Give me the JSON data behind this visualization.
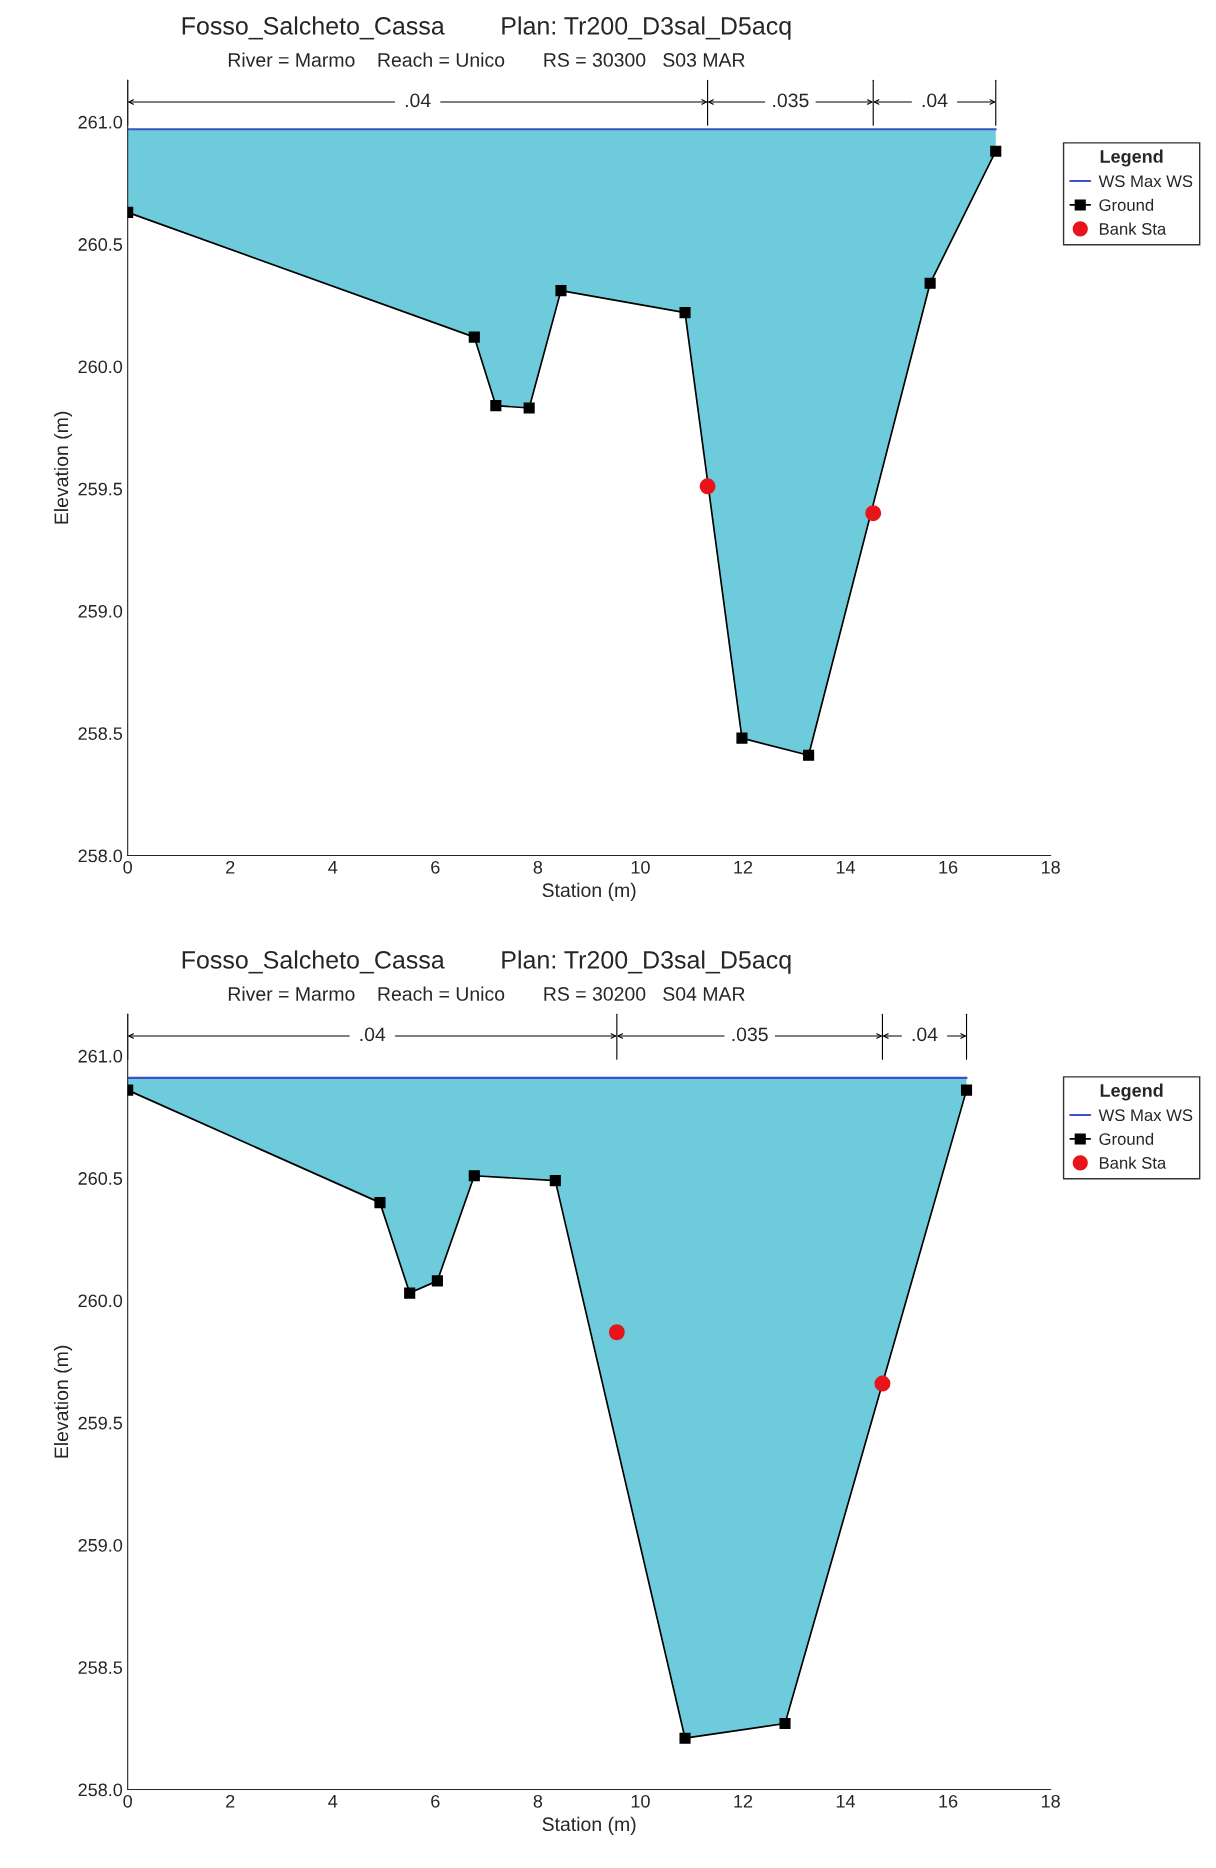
{
  "chart_data": [
    {
      "type": "line",
      "title": "Fosso_Salcheto_Cassa        Plan: Tr200_D3sal_D5acq",
      "subtitle": "River = Marmo    Reach = Unico       RS = 30300   S03 MAR",
      "xlabel": "Station (m)",
      "ylabel": "Elevation (m)",
      "legend_title": "Legend",
      "legend": "right",
      "xlim": [
        0,
        18
      ],
      "xticks": [
        0,
        2,
        4,
        6,
        8,
        10,
        12,
        14,
        16,
        18
      ],
      "ylim": [
        258.0,
        261.17
      ],
      "yticks": [
        {
          "value": 258,
          "label": "258.0"
        },
        258.5,
        {
          "value": 259,
          "label": "259.0"
        },
        259.5,
        {
          "value": 260,
          "label": "260.0"
        },
        260.5,
        {
          "value": 261,
          "label": "261.0"
        }
      ],
      "annotations": [
        ".04",
        ".035",
        ".04"
      ],
      "series": [
        {
          "name": "WS Max WS",
          "type": "area",
          "color": "#3f51c8",
          "x": [
            0,
            6.76,
            7.18,
            7.83,
            8.45,
            10.87,
            11.98,
            13.28,
            15.65,
            16.93
          ],
          "values": [
            260.97,
            260.97,
            260.97,
            260.97,
            260.97,
            260.97,
            260.97,
            260.97,
            260.97,
            260.97
          ]
        },
        {
          "name": "Ground",
          "color": "#000000",
          "marker": "square",
          "x": [
            0,
            6.76,
            7.18,
            7.83,
            8.45,
            10.87,
            11.98,
            13.28,
            15.65,
            16.93
          ],
          "values": [
            260.63,
            260.12,
            259.84,
            259.83,
            260.31,
            260.22,
            258.48,
            258.41,
            260.34,
            260.88
          ]
        },
        {
          "name": "Bank Sta",
          "type": "scatter",
          "color": "#e8141c",
          "marker": "circle",
          "x": [
            11.31,
            14.54
          ],
          "values": [
            259.51,
            259.4
          ]
        }
      ]
    },
    {
      "type": "line",
      "title": "Fosso_Salcheto_Cassa        Plan: Tr200_D3sal_D5acq",
      "subtitle": "River = Marmo    Reach = Unico       RS = 30200   S04 MAR",
      "xlabel": "Station (m)",
      "ylabel": "Elevation (m)",
      "legend_title": "Legend",
      "legend": "right",
      "xlim": [
        0,
        18
      ],
      "xticks": [
        0,
        2,
        4,
        6,
        8,
        10,
        12,
        14,
        16,
        18
      ],
      "ylim": [
        258.0,
        261.17
      ],
      "yticks": [
        {
          "value": 258,
          "label": "258.0"
        },
        258.5,
        {
          "value": 259,
          "label": "259.0"
        },
        259.5,
        {
          "value": 260,
          "label": "260.0"
        },
        260.5,
        {
          "value": 261,
          "label": "261.0"
        }
      ],
      "annotations": [
        ".04",
        ".035",
        ".04"
      ],
      "series": [
        {
          "name": "WS Max WS",
          "type": "area",
          "color": "#3f51c8",
          "x": [
            0,
            4.92,
            5.5,
            6.04,
            6.76,
            8.34,
            10.87,
            12.82,
            16.36
          ],
          "values": [
            260.91,
            260.91,
            260.91,
            260.91,
            260.91,
            260.91,
            260.91,
            260.91,
            260.91
          ]
        },
        {
          "name": "Ground",
          "color": "#000000",
          "marker": "square",
          "x": [
            0,
            4.92,
            5.5,
            6.04,
            6.76,
            8.34,
            10.87,
            12.82,
            16.36
          ],
          "values": [
            260.86,
            260.4,
            260.03,
            260.08,
            260.51,
            260.49,
            258.21,
            258.27,
            260.86
          ]
        },
        {
          "name": "Bank Sta",
          "type": "scatter",
          "color": "#e8141c",
          "marker": "circle",
          "x": [
            9.54,
            14.72
          ],
          "values": [
            259.87,
            259.66
          ]
        }
      ]
    }
  ]
}
